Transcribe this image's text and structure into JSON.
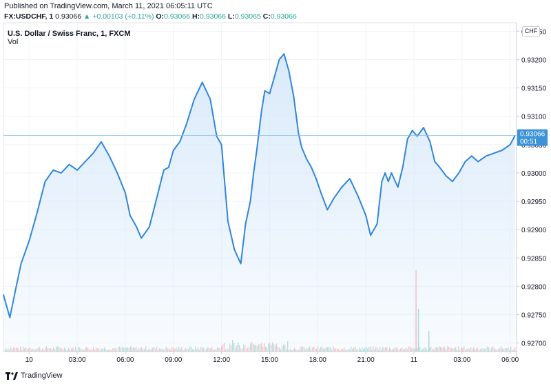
{
  "header": {
    "published": "Published on TradingView.com, March 11, 2021 06:05:11 UTC",
    "symbol": "FX:USDCHF, 1",
    "last": "0.93066",
    "change": "+0.00103 (+0.11%)",
    "o_label": "O:",
    "o_value": "0.93066",
    "h_label": "H:",
    "h_value": "0.93066",
    "l_label": "L:",
    "l_value": "0.93065",
    "c_label": "C:",
    "c_value": "0.93066"
  },
  "chart_title": "U.S. Dollar / Swiss Franc, 1, FXCM",
  "vol_label": "Vol",
  "currency_badge": "CHF",
  "last_price_label": "0.93066",
  "last_price_countdown": "00:51",
  "footer": {
    "brand": "TradingView"
  },
  "colors": {
    "line": "#2e86de",
    "fill": "#d6e8fa",
    "vol_up": "#9ed6cf",
    "vol_down": "#f4b3b3",
    "price_line": "#7fbfe8"
  },
  "chart_data": {
    "type": "area",
    "title": "U.S. Dollar / Swiss Franc, 1, FXCM",
    "x_ticks": [
      "10",
      "03:00",
      "06:00",
      "09:00",
      "12:00",
      "15:00",
      "18:00",
      "21:00",
      "11",
      "03:00",
      "06:00"
    ],
    "y_ticks": [
      "0.93250",
      "0.93200",
      "0.93150",
      "0.93100",
      "0.93050",
      "0.93000",
      "0.92950",
      "0.92900",
      "0.92850",
      "0.92800",
      "0.92750",
      "0.92700"
    ],
    "ylim": [
      0.92685,
      0.93265
    ],
    "x_range_hours": [
      -1.6,
      30.4
    ],
    "grid": true,
    "series": [
      {
        "x": [
          -1.6,
          -1.2,
          -0.8,
          -0.5,
          0,
          0.5,
          1.0,
          1.5,
          2.0,
          2.5,
          3.0,
          3.5,
          4.0,
          4.5,
          5.0,
          5.5,
          6.0,
          6.3,
          6.7,
          7.0,
          7.5,
          8.0,
          8.4,
          8.7,
          9.0,
          9.4,
          9.8,
          10.3,
          10.8,
          11.3,
          11.7,
          12.0,
          12.4,
          12.8,
          13.2,
          13.5,
          13.8,
          14.0,
          14.2,
          14.5,
          14.7,
          15.0,
          15.3,
          15.6,
          15.9,
          16.2,
          16.5,
          16.8,
          17.0,
          17.3,
          17.6,
          17.9,
          18.2,
          18.6,
          19.0,
          19.5,
          20.0,
          20.5,
          21.0,
          21.3,
          21.7,
          22.0,
          22.2,
          22.4,
          22.6,
          23.0,
          23.3,
          23.6,
          23.9,
          24.2,
          24.6,
          25.0,
          25.3,
          25.6,
          26.0,
          26.4,
          26.8,
          27.2,
          27.6,
          28.0,
          28.5,
          29.0,
          29.5,
          30.0,
          30.3
        ],
        "y": [
          0.92785,
          0.92745,
          0.928,
          0.9284,
          0.9288,
          0.9293,
          0.92985,
          0.93005,
          0.93,
          0.93015,
          0.93005,
          0.9302,
          0.93035,
          0.93055,
          0.9303,
          0.93,
          0.92965,
          0.92925,
          0.92905,
          0.92885,
          0.92905,
          0.9296,
          0.93005,
          0.9301,
          0.9304,
          0.93055,
          0.93085,
          0.9313,
          0.9316,
          0.9313,
          0.93065,
          0.9305,
          0.92915,
          0.92865,
          0.9284,
          0.9291,
          0.9295,
          0.93,
          0.9304,
          0.9311,
          0.93145,
          0.9314,
          0.9317,
          0.932,
          0.9321,
          0.9318,
          0.93135,
          0.9307,
          0.93045,
          0.93025,
          0.9301,
          0.9299,
          0.92965,
          0.92935,
          0.92955,
          0.92975,
          0.9299,
          0.9296,
          0.92925,
          0.9289,
          0.9291,
          0.92985,
          0.93,
          0.92985,
          0.93,
          0.92975,
          0.9301,
          0.9306,
          0.93075,
          0.93065,
          0.9308,
          0.93055,
          0.9302,
          0.9301,
          0.92995,
          0.92985,
          0.93,
          0.9302,
          0.9303,
          0.9302,
          0.9303,
          0.93035,
          0.9304,
          0.9305,
          0.93066
        ]
      }
    ]
  }
}
